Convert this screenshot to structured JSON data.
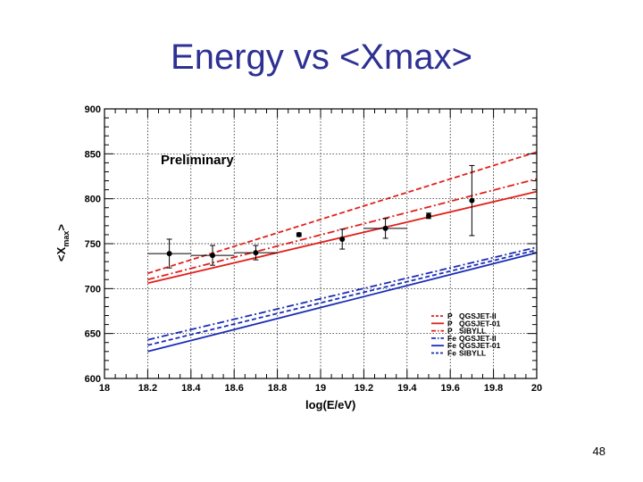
{
  "slide": {
    "title": "Energy vs <Xmax>",
    "page_number": "48"
  },
  "chart_data": {
    "type": "line",
    "title": "",
    "xlabel": "log(E/eV)",
    "ylabel": "<X_max>",
    "ylabel_main": "<X",
    "ylabel_sub": "max",
    "ylabel_close": ">",
    "xlim": [
      18,
      20
    ],
    "ylim": [
      600,
      900
    ],
    "x_ticks": [
      18,
      18.2,
      18.4,
      18.6,
      18.8,
      19,
      19.2,
      19.4,
      19.6,
      19.8,
      20
    ],
    "x_tick_labels": [
      "18",
      "18.2",
      "18.4",
      "18.6",
      "18.8",
      "19",
      "19.2",
      "19.4",
      "19.6",
      "19.8",
      "20"
    ],
    "y_ticks": [
      600,
      650,
      700,
      750,
      800,
      850,
      900
    ],
    "y_tick_labels": [
      "600",
      "650",
      "700",
      "750",
      "800",
      "850",
      "900"
    ],
    "grid": true,
    "annotation": "Preliminary",
    "legend_position": "bottom-right",
    "data_points": {
      "x": [
        18.3,
        18.5,
        18.7,
        18.9,
        19.1,
        19.3,
        19.5,
        19.7
      ],
      "y": [
        739,
        737,
        740,
        760,
        755,
        767,
        781,
        798
      ],
      "x_err": [
        0.1,
        0.1,
        0.1,
        0,
        0,
        0.1,
        0,
        0
      ],
      "y_err": [
        16,
        11,
        8,
        2,
        11,
        11,
        3,
        39
      ]
    },
    "series": [
      {
        "name": "P   QGSJET-II",
        "primary": "P",
        "model": "QGSJET-II",
        "color": "#e0201b",
        "dash": "6,3",
        "x": [
          18.2,
          20.0
        ],
        "y": [
          717,
          852
        ]
      },
      {
        "name": "P   QGSJET-01",
        "primary": "P",
        "model": "QGSJET-01",
        "color": "#e0201b",
        "dash": "",
        "x": [
          18.2,
          20.0
        ],
        "y": [
          706,
          808
        ]
      },
      {
        "name": "P   SIBYLL",
        "primary": "P",
        "model": "SIBYLL",
        "color": "#e0201b",
        "dash": "8,3,2,3",
        "x": [
          18.2,
          20.0
        ],
        "y": [
          710,
          822
        ]
      },
      {
        "name": "Fe  QGSJET-II",
        "primary": "Fe",
        "model": "QGSJET-II",
        "color": "#1a2db5",
        "dash": "8,3,2,3",
        "x": [
          18.2,
          20.0
        ],
        "y": [
          643,
          746
        ]
      },
      {
        "name": "Fe  QGSJET-01",
        "primary": "Fe",
        "model": "QGSJET-01",
        "color": "#1a2db5",
        "dash": "",
        "x": [
          18.2,
          20.0
        ],
        "y": [
          630,
          740
        ]
      },
      {
        "name": "Fe  SIBYLL",
        "primary": "Fe",
        "model": "SIBYLL",
        "color": "#1a2db5",
        "dash": "5,3",
        "x": [
          18.2,
          20.0
        ],
        "y": [
          637,
          743
        ]
      }
    ]
  }
}
